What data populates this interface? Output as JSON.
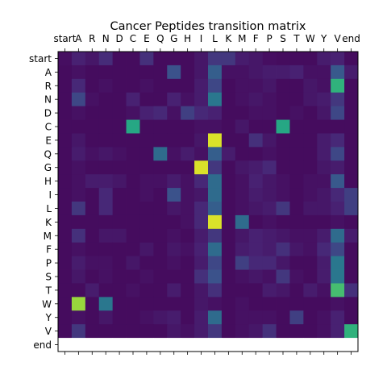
{
  "chart_data": {
    "type": "heatmap",
    "title": "Cancer Peptides transition matrix",
    "colormap": "viridis",
    "x_tick_position": "top",
    "grid": false,
    "row_labels": [
      "start",
      "A",
      "R",
      "N",
      "D",
      "C",
      "E",
      "Q",
      "G",
      "H",
      "I",
      "L",
      "K",
      "M",
      "F",
      "P",
      "S",
      "T",
      "W",
      "Y",
      "V",
      "end"
    ],
    "col_labels": [
      "start",
      "A",
      "R",
      "N",
      "D",
      "C",
      "E",
      "Q",
      "G",
      "H",
      "I",
      "L",
      "K",
      "M",
      "F",
      "P",
      "S",
      "T",
      "W",
      "Y",
      "V",
      "end"
    ],
    "value_range": [
      0,
      1
    ],
    "values": [
      [
        0.05,
        0.12,
        0.08,
        0.15,
        0.04,
        0.04,
        0.16,
        0.04,
        0.04,
        0.04,
        0.08,
        0.18,
        0.18,
        0.1,
        0.08,
        0.05,
        0.04,
        0.04,
        0.04,
        0.1,
        0.12,
        0.04
      ],
      [
        0.04,
        0.06,
        0.04,
        0.04,
        0.04,
        0.04,
        0.04,
        0.04,
        0.25,
        0.04,
        0.08,
        0.3,
        0.06,
        0.06,
        0.08,
        0.1,
        0.1,
        0.12,
        0.06,
        0.06,
        0.28,
        0.1
      ],
      [
        0.04,
        0.14,
        0.04,
        0.06,
        0.04,
        0.04,
        0.06,
        0.04,
        0.04,
        0.04,
        0.1,
        0.22,
        0.04,
        0.06,
        0.06,
        0.08,
        0.04,
        0.04,
        0.08,
        0.06,
        0.65,
        0.04
      ],
      [
        0.04,
        0.22,
        0.06,
        0.04,
        0.04,
        0.12,
        0.04,
        0.04,
        0.12,
        0.06,
        0.1,
        0.4,
        0.04,
        0.06,
        0.08,
        0.06,
        0.04,
        0.04,
        0.08,
        0.1,
        0.18,
        0.04
      ],
      [
        0.04,
        0.06,
        0.04,
        0.04,
        0.04,
        0.06,
        0.12,
        0.14,
        0.06,
        0.2,
        0.14,
        0.12,
        0.04,
        0.04,
        0.06,
        0.06,
        0.04,
        0.06,
        0.04,
        0.08,
        0.22,
        0.04
      ],
      [
        0.04,
        0.04,
        0.04,
        0.04,
        0.04,
        0.6,
        0.04,
        0.04,
        0.04,
        0.04,
        0.06,
        0.06,
        0.04,
        0.08,
        0.04,
        0.04,
        0.6,
        0.04,
        0.04,
        0.04,
        0.04,
        0.04
      ],
      [
        0.04,
        0.08,
        0.04,
        0.04,
        0.04,
        0.04,
        0.04,
        0.04,
        0.04,
        0.04,
        0.08,
        0.95,
        0.04,
        0.04,
        0.16,
        0.08,
        0.04,
        0.04,
        0.04,
        0.1,
        0.14,
        0.04
      ],
      [
        0.04,
        0.1,
        0.06,
        0.08,
        0.06,
        0.04,
        0.04,
        0.35,
        0.06,
        0.1,
        0.06,
        0.3,
        0.1,
        0.04,
        0.04,
        0.06,
        0.04,
        0.04,
        0.04,
        0.1,
        0.22,
        0.04
      ],
      [
        0.04,
        0.06,
        0.04,
        0.04,
        0.04,
        0.04,
        0.04,
        0.04,
        0.04,
        0.04,
        0.95,
        0.18,
        0.04,
        0.08,
        0.1,
        0.14,
        0.04,
        0.04,
        0.04,
        0.08,
        0.1,
        0.04
      ],
      [
        0.04,
        0.06,
        0.1,
        0.1,
        0.08,
        0.04,
        0.06,
        0.06,
        0.1,
        0.06,
        0.14,
        0.35,
        0.04,
        0.06,
        0.12,
        0.08,
        0.06,
        0.04,
        0.06,
        0.06,
        0.28,
        0.04
      ],
      [
        0.04,
        0.06,
        0.04,
        0.14,
        0.04,
        0.04,
        0.06,
        0.04,
        0.25,
        0.06,
        0.08,
        0.35,
        0.04,
        0.06,
        0.1,
        0.08,
        0.06,
        0.04,
        0.06,
        0.08,
        0.14,
        0.2
      ],
      [
        0.04,
        0.18,
        0.04,
        0.14,
        0.04,
        0.04,
        0.04,
        0.04,
        0.08,
        0.06,
        0.14,
        0.3,
        0.04,
        0.06,
        0.08,
        0.1,
        0.18,
        0.04,
        0.08,
        0.08,
        0.12,
        0.2
      ],
      [
        0.04,
        0.04,
        0.04,
        0.04,
        0.04,
        0.04,
        0.04,
        0.04,
        0.04,
        0.06,
        0.14,
        0.95,
        0.04,
        0.35,
        0.04,
        0.06,
        0.04,
        0.04,
        0.04,
        0.04,
        0.06,
        0.04
      ],
      [
        0.04,
        0.16,
        0.04,
        0.08,
        0.08,
        0.04,
        0.04,
        0.04,
        0.06,
        0.04,
        0.1,
        0.18,
        0.04,
        0.08,
        0.12,
        0.1,
        0.08,
        0.06,
        0.06,
        0.1,
        0.35,
        0.1
      ],
      [
        0.04,
        0.06,
        0.04,
        0.04,
        0.04,
        0.04,
        0.08,
        0.04,
        0.08,
        0.06,
        0.12,
        0.35,
        0.04,
        0.1,
        0.12,
        0.1,
        0.16,
        0.08,
        0.06,
        0.14,
        0.22,
        0.04
      ],
      [
        0.04,
        0.1,
        0.06,
        0.06,
        0.04,
        0.08,
        0.04,
        0.04,
        0.06,
        0.04,
        0.1,
        0.22,
        0.04,
        0.2,
        0.14,
        0.14,
        0.08,
        0.04,
        0.04,
        0.1,
        0.4,
        0.04
      ],
      [
        0.04,
        0.08,
        0.04,
        0.06,
        0.04,
        0.04,
        0.06,
        0.04,
        0.04,
        0.04,
        0.16,
        0.25,
        0.04,
        0.06,
        0.08,
        0.06,
        0.18,
        0.06,
        0.04,
        0.1,
        0.4,
        0.04
      ],
      [
        0.04,
        0.04,
        0.1,
        0.04,
        0.04,
        0.06,
        0.04,
        0.04,
        0.1,
        0.04,
        0.08,
        0.16,
        0.04,
        0.04,
        0.04,
        0.1,
        0.08,
        0.04,
        0.1,
        0.06,
        0.7,
        0.16
      ],
      [
        0.04,
        0.85,
        0.04,
        0.4,
        0.04,
        0.04,
        0.04,
        0.04,
        0.04,
        0.04,
        0.08,
        0.06,
        0.04,
        0.06,
        0.04,
        0.04,
        0.04,
        0.04,
        0.04,
        0.04,
        0.06,
        0.04
      ],
      [
        0.04,
        0.06,
        0.04,
        0.08,
        0.04,
        0.04,
        0.06,
        0.08,
        0.1,
        0.04,
        0.1,
        0.35,
        0.04,
        0.06,
        0.06,
        0.06,
        0.04,
        0.2,
        0.04,
        0.06,
        0.12,
        0.04
      ],
      [
        0.04,
        0.18,
        0.04,
        0.04,
        0.04,
        0.04,
        0.04,
        0.04,
        0.08,
        0.06,
        0.1,
        0.18,
        0.04,
        0.06,
        0.08,
        0.16,
        0.04,
        0.04,
        0.04,
        0.06,
        0.12,
        0.65
      ],
      [
        null,
        null,
        null,
        null,
        null,
        null,
        null,
        null,
        null,
        null,
        null,
        null,
        null,
        null,
        null,
        null,
        null,
        null,
        null,
        null,
        null,
        null
      ]
    ]
  }
}
